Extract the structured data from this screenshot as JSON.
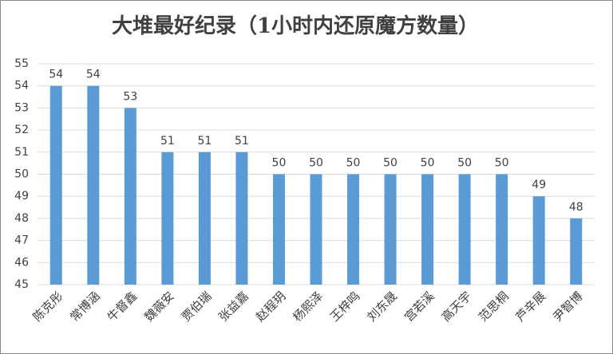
{
  "chart_data": {
    "type": "bar",
    "title": "大堆最好纪录（1小时内还原魔方数量）",
    "categories": [
      "陈克彤",
      "常博涵",
      "牛督鑫",
      "魏薇安",
      "贾伯瑞",
      "张益嘉",
      "赵程玥",
      "杨熙泽",
      "王梓鸣",
      "刘东晟",
      "宫若溪",
      "高天宇",
      "范思桐",
      "芦辛展",
      "尹智博"
    ],
    "values": [
      54,
      54,
      53,
      51,
      51,
      51,
      50,
      50,
      50,
      50,
      50,
      50,
      50,
      49,
      48
    ],
    "color": "#5b9bd5",
    "ylim": [
      45,
      55
    ],
    "yticks": [
      45,
      46,
      47,
      48,
      49,
      50,
      51,
      52,
      53,
      54,
      55
    ],
    "grid": true
  }
}
